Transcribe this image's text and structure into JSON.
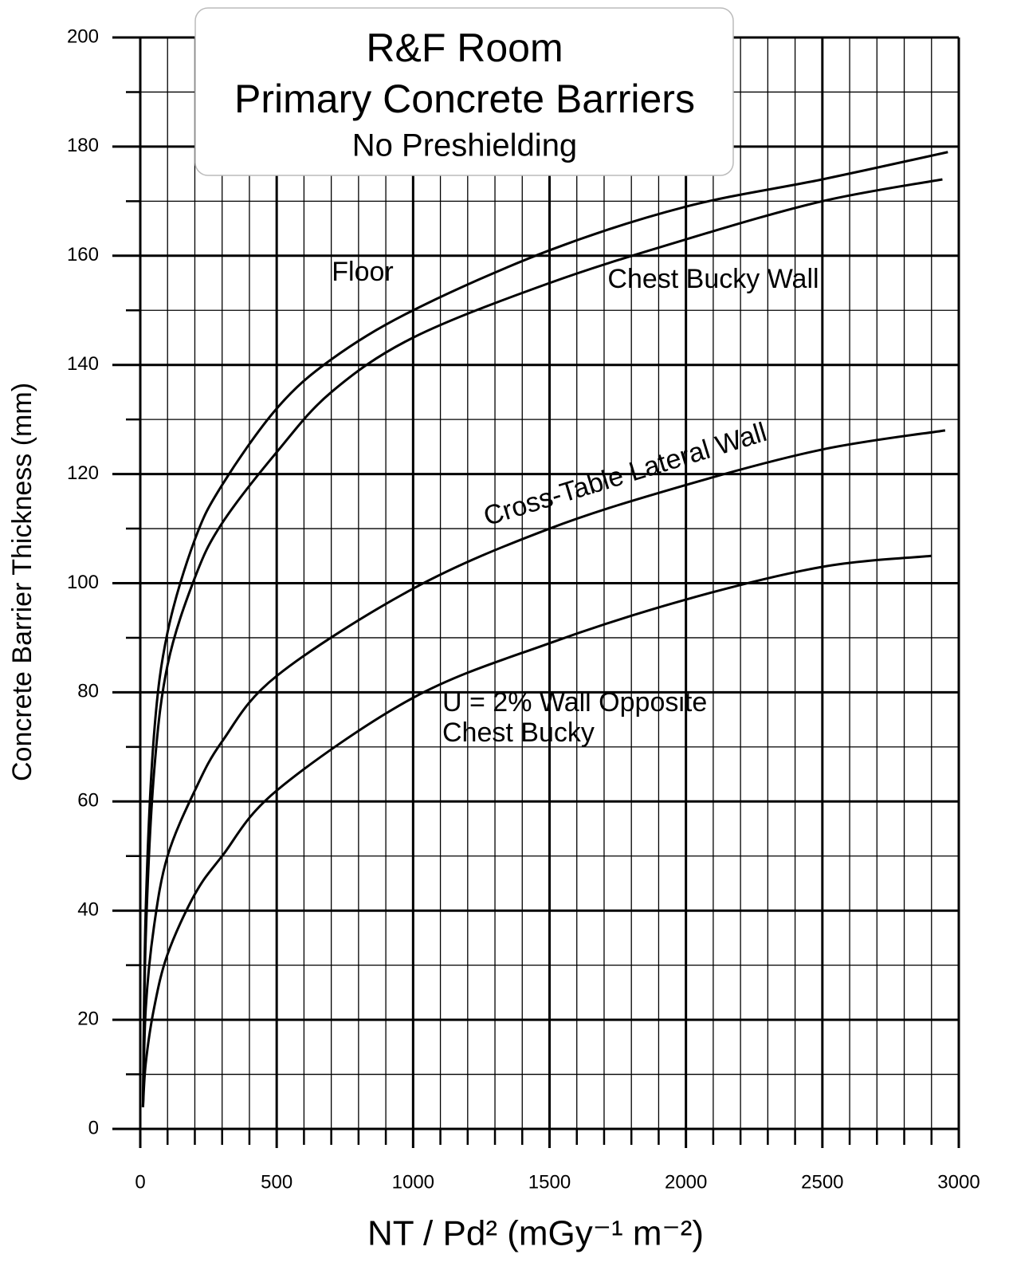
{
  "chart_data": {
    "type": "line",
    "title_lines": [
      "R&F Room",
      "Primary Concrete Barriers",
      "No Preshielding"
    ],
    "xlabel": "NT / Pd² (mGy⁻¹ m⁻²)",
    "ylabel": "Concrete Barrier Thickness (mm)",
    "xlim": [
      0,
      3000
    ],
    "ylim": [
      0,
      200
    ],
    "xticks": [
      0,
      500,
      1000,
      1500,
      2000,
      2500,
      3000
    ],
    "yticks": [
      0,
      20,
      40,
      60,
      80,
      100,
      120,
      140,
      160,
      180,
      200
    ],
    "xminorticks": [
      100,
      200,
      300,
      400,
      600,
      700,
      800,
      900,
      1100,
      1200,
      1300,
      1400,
      1600,
      1700,
      1800,
      1900,
      2100,
      2200,
      2300,
      2400,
      2600,
      2700,
      2800,
      2900
    ],
    "yminorticks": [
      10,
      30,
      50,
      70,
      90,
      110,
      130,
      150,
      170,
      190
    ],
    "grid": true,
    "series": [
      {
        "name": "Floor",
        "color": "#000000",
        "x": [
          10,
          20,
          50,
          100,
          200,
          300,
          500,
          700,
          1000,
          1500,
          2000,
          2500,
          2960
        ],
        "values": [
          4,
          40,
          72,
          91,
          108,
          118,
          132,
          141,
          150,
          161,
          169,
          174,
          179
        ]
      },
      {
        "name": "Chest Bucky Wall",
        "color": "#000000",
        "x": [
          10,
          20,
          50,
          100,
          200,
          300,
          500,
          700,
          1000,
          1500,
          2000,
          2500,
          2940
        ],
        "values": [
          4,
          35,
          65,
          85,
          101,
          111,
          124,
          135,
          145,
          155,
          163,
          170,
          174
        ]
      },
      {
        "name": "Cross-Table Lateral Wall",
        "color": "#000000",
        "x": [
          10,
          20,
          50,
          100,
          200,
          300,
          500,
          1000,
          1500,
          2000,
          2500,
          2950
        ],
        "values": [
          4,
          22,
          37,
          50,
          62,
          71,
          83,
          99,
          110,
          118,
          124.5,
          128
        ]
      },
      {
        "name": "U = 2% Wall Opposite Chest Bucky",
        "color": "#000000",
        "x": [
          10,
          20,
          50,
          100,
          200,
          300,
          500,
          1000,
          1500,
          2000,
          2500,
          2900
        ],
        "values": [
          4,
          12,
          22,
          32,
          43,
          50,
          62,
          79,
          89,
          97,
          103,
          105
        ]
      }
    ]
  }
}
